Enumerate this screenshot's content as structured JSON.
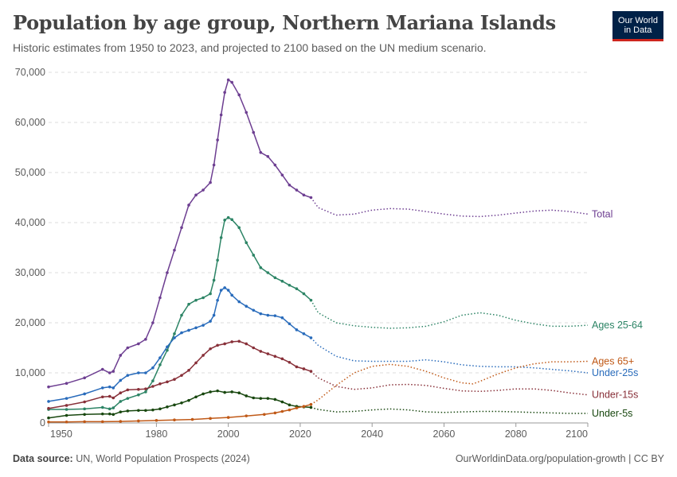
{
  "header": {
    "title": "Population by age group, Northern Mariana Islands",
    "subtitle": "Historic estimates from 1950 to 2023, and projected to 2100 based on the UN medium scenario.",
    "logo_line1": "Our World",
    "logo_line2": "in Data"
  },
  "footer": {
    "source_label": "Data source:",
    "source_text": "UN, World Population Prospects (2024)",
    "url_text": "OurWorldinData.org/population-growth | CC BY"
  },
  "colors": {
    "Total": "#6d3e91",
    "Ages 25-64": "#2c8465",
    "Ages 65+": "#c05917",
    "Under-25s": "#286bbb",
    "Under-15s": "#883039",
    "Under-5s": "#18470f"
  },
  "chart_data": {
    "type": "line",
    "x_range": [
      1950,
      2100
    ],
    "y_range": [
      0,
      70000
    ],
    "x_ticks": [
      "1950",
      "1980",
      "2000",
      "2020",
      "2040",
      "2060",
      "2080",
      "2100"
    ],
    "y_ticks": [
      "0",
      "10,000",
      "20,000",
      "30,000",
      "40,000",
      "50,000",
      "60,000",
      "70,000"
    ],
    "y_tick_values": [
      0,
      10000,
      20000,
      30000,
      40000,
      50000,
      60000,
      70000
    ],
    "x_tick_values": [
      1950,
      1980,
      2000,
      2020,
      2040,
      2060,
      2080,
      2100
    ],
    "gridlines": true,
    "historic_end_year": 2023,
    "legend": "inline labels at right end of lines",
    "series": [
      {
        "name": "Total",
        "points": [
          [
            1950,
            7200
          ],
          [
            1955,
            7900
          ],
          [
            1960,
            9000
          ],
          [
            1965,
            10700
          ],
          [
            1967,
            10000
          ],
          [
            1968,
            10300
          ],
          [
            1970,
            13500
          ],
          [
            1972,
            15000
          ],
          [
            1975,
            15800
          ],
          [
            1977,
            16700
          ],
          [
            1979,
            20000
          ],
          [
            1981,
            25000
          ],
          [
            1983,
            30000
          ],
          [
            1985,
            34500
          ],
          [
            1987,
            39000
          ],
          [
            1989,
            43500
          ],
          [
            1991,
            45500
          ],
          [
            1993,
            46500
          ],
          [
            1995,
            48000
          ],
          [
            1996,
            51500
          ],
          [
            1997,
            56500
          ],
          [
            1998,
            61500
          ],
          [
            1999,
            66000
          ],
          [
            2000,
            68500
          ],
          [
            2001,
            68000
          ],
          [
            2003,
            65500
          ],
          [
            2005,
            62000
          ],
          [
            2007,
            58000
          ],
          [
            2009,
            54000
          ],
          [
            2011,
            53200
          ],
          [
            2013,
            51500
          ],
          [
            2015,
            49500
          ],
          [
            2017,
            47500
          ],
          [
            2019,
            46500
          ],
          [
            2021,
            45500
          ],
          [
            2023,
            45000
          ],
          [
            2025,
            43000
          ],
          [
            2030,
            41500
          ],
          [
            2035,
            41700
          ],
          [
            2040,
            42500
          ],
          [
            2045,
            42800
          ],
          [
            2050,
            42700
          ],
          [
            2055,
            42200
          ],
          [
            2060,
            41700
          ],
          [
            2065,
            41300
          ],
          [
            2070,
            41200
          ],
          [
            2075,
            41500
          ],
          [
            2080,
            41900
          ],
          [
            2085,
            42300
          ],
          [
            2090,
            42500
          ],
          [
            2095,
            42200
          ],
          [
            2100,
            41700
          ]
        ]
      },
      {
        "name": "Ages 25-64",
        "points": [
          [
            1950,
            2700
          ],
          [
            1955,
            2700
          ],
          [
            1960,
            2800
          ],
          [
            1965,
            3100
          ],
          [
            1967,
            2800
          ],
          [
            1968,
            3000
          ],
          [
            1970,
            4300
          ],
          [
            1972,
            4900
          ],
          [
            1975,
            5600
          ],
          [
            1977,
            6200
          ],
          [
            1979,
            8400
          ],
          [
            1981,
            11600
          ],
          [
            1983,
            14500
          ],
          [
            1985,
            17800
          ],
          [
            1987,
            21500
          ],
          [
            1989,
            23700
          ],
          [
            1991,
            24500
          ],
          [
            1993,
            25000
          ],
          [
            1995,
            25800
          ],
          [
            1996,
            28500
          ],
          [
            1997,
            32500
          ],
          [
            1998,
            37000
          ],
          [
            1999,
            40500
          ],
          [
            2000,
            41000
          ],
          [
            2001,
            40600
          ],
          [
            2003,
            39000
          ],
          [
            2005,
            36000
          ],
          [
            2007,
            33500
          ],
          [
            2009,
            31000
          ],
          [
            2011,
            30000
          ],
          [
            2013,
            29000
          ],
          [
            2015,
            28300
          ],
          [
            2017,
            27500
          ],
          [
            2019,
            26800
          ],
          [
            2021,
            25800
          ],
          [
            2023,
            24500
          ],
          [
            2025,
            22000
          ],
          [
            2030,
            20000
          ],
          [
            2035,
            19400
          ],
          [
            2040,
            19100
          ],
          [
            2045,
            18900
          ],
          [
            2050,
            19000
          ],
          [
            2055,
            19300
          ],
          [
            2060,
            20200
          ],
          [
            2065,
            21500
          ],
          [
            2070,
            22000
          ],
          [
            2075,
            21500
          ],
          [
            2080,
            20500
          ],
          [
            2085,
            19800
          ],
          [
            2090,
            19300
          ],
          [
            2095,
            19300
          ],
          [
            2100,
            19500
          ]
        ]
      },
      {
        "name": "Under-25s",
        "points": [
          [
            1950,
            4300
          ],
          [
            1955,
            4900
          ],
          [
            1960,
            5800
          ],
          [
            1965,
            7000
          ],
          [
            1967,
            7200
          ],
          [
            1968,
            7000
          ],
          [
            1970,
            8500
          ],
          [
            1972,
            9500
          ],
          [
            1975,
            10000
          ],
          [
            1977,
            10000
          ],
          [
            1979,
            11000
          ],
          [
            1981,
            13000
          ],
          [
            1983,
            15200
          ],
          [
            1985,
            17000
          ],
          [
            1987,
            18000
          ],
          [
            1989,
            18500
          ],
          [
            1991,
            19000
          ],
          [
            1993,
            19500
          ],
          [
            1995,
            20300
          ],
          [
            1996,
            21500
          ],
          [
            1997,
            24500
          ],
          [
            1998,
            26500
          ],
          [
            1999,
            27000
          ],
          [
            2000,
            26500
          ],
          [
            2001,
            25500
          ],
          [
            2003,
            24200
          ],
          [
            2005,
            23300
          ],
          [
            2007,
            22500
          ],
          [
            2009,
            21800
          ],
          [
            2011,
            21500
          ],
          [
            2013,
            21400
          ],
          [
            2015,
            21000
          ],
          [
            2017,
            19800
          ],
          [
            2019,
            18600
          ],
          [
            2021,
            17800
          ],
          [
            2023,
            17000
          ],
          [
            2025,
            15500
          ],
          [
            2030,
            13300
          ],
          [
            2035,
            12400
          ],
          [
            2040,
            12300
          ],
          [
            2045,
            12300
          ],
          [
            2050,
            12300
          ],
          [
            2055,
            12600
          ],
          [
            2060,
            12200
          ],
          [
            2065,
            11600
          ],
          [
            2070,
            11300
          ],
          [
            2075,
            11200
          ],
          [
            2080,
            11200
          ],
          [
            2085,
            11000
          ],
          [
            2090,
            10700
          ],
          [
            2095,
            10400
          ],
          [
            2100,
            10000
          ]
        ]
      },
      {
        "name": "Under-15s",
        "points": [
          [
            1950,
            2900
          ],
          [
            1955,
            3500
          ],
          [
            1960,
            4200
          ],
          [
            1965,
            5200
          ],
          [
            1967,
            5300
          ],
          [
            1968,
            5000
          ],
          [
            1970,
            6000
          ],
          [
            1972,
            6600
          ],
          [
            1975,
            6700
          ],
          [
            1977,
            6800
          ],
          [
            1979,
            7300
          ],
          [
            1981,
            7800
          ],
          [
            1983,
            8200
          ],
          [
            1985,
            8700
          ],
          [
            1987,
            9500
          ],
          [
            1989,
            10500
          ],
          [
            1991,
            12000
          ],
          [
            1993,
            13500
          ],
          [
            1995,
            14800
          ],
          [
            1997,
            15500
          ],
          [
            1999,
            15800
          ],
          [
            2001,
            16200
          ],
          [
            2003,
            16300
          ],
          [
            2005,
            15800
          ],
          [
            2007,
            15000
          ],
          [
            2009,
            14300
          ],
          [
            2011,
            13800
          ],
          [
            2013,
            13300
          ],
          [
            2015,
            12800
          ],
          [
            2017,
            12100
          ],
          [
            2019,
            11200
          ],
          [
            2021,
            10800
          ],
          [
            2023,
            10300
          ],
          [
            2025,
            9000
          ],
          [
            2030,
            7300
          ],
          [
            2035,
            6700
          ],
          [
            2040,
            7000
          ],
          [
            2045,
            7600
          ],
          [
            2050,
            7700
          ],
          [
            2055,
            7500
          ],
          [
            2060,
            6900
          ],
          [
            2065,
            6400
          ],
          [
            2070,
            6300
          ],
          [
            2075,
            6500
          ],
          [
            2080,
            6800
          ],
          [
            2085,
            6800
          ],
          [
            2090,
            6500
          ],
          [
            2095,
            6000
          ],
          [
            2100,
            5600
          ]
        ]
      },
      {
        "name": "Under-5s",
        "points": [
          [
            1950,
            1000
          ],
          [
            1955,
            1500
          ],
          [
            1960,
            1700
          ],
          [
            1965,
            1800
          ],
          [
            1967,
            1800
          ],
          [
            1968,
            1700
          ],
          [
            1970,
            2200
          ],
          [
            1972,
            2400
          ],
          [
            1975,
            2500
          ],
          [
            1977,
            2500
          ],
          [
            1979,
            2600
          ],
          [
            1981,
            2800
          ],
          [
            1983,
            3200
          ],
          [
            1985,
            3600
          ],
          [
            1987,
            4000
          ],
          [
            1989,
            4500
          ],
          [
            1991,
            5200
          ],
          [
            1993,
            5800
          ],
          [
            1995,
            6200
          ],
          [
            1997,
            6400
          ],
          [
            1999,
            6100
          ],
          [
            2001,
            6200
          ],
          [
            2003,
            6000
          ],
          [
            2005,
            5400
          ],
          [
            2007,
            5000
          ],
          [
            2009,
            4900
          ],
          [
            2011,
            4900
          ],
          [
            2013,
            4700
          ],
          [
            2015,
            4200
          ],
          [
            2017,
            3600
          ],
          [
            2019,
            3300
          ],
          [
            2021,
            3200
          ],
          [
            2023,
            3100
          ],
          [
            2025,
            2700
          ],
          [
            2030,
            2200
          ],
          [
            2035,
            2300
          ],
          [
            2040,
            2600
          ],
          [
            2045,
            2800
          ],
          [
            2050,
            2600
          ],
          [
            2055,
            2200
          ],
          [
            2060,
            2100
          ],
          [
            2065,
            2200
          ],
          [
            2070,
            2300
          ],
          [
            2075,
            2300
          ],
          [
            2080,
            2200
          ],
          [
            2085,
            2100
          ],
          [
            2090,
            2000
          ],
          [
            2095,
            1900
          ],
          [
            2100,
            1900
          ]
        ]
      },
      {
        "name": "Ages 65+",
        "points": [
          [
            1950,
            200
          ],
          [
            1955,
            200
          ],
          [
            1960,
            250
          ],
          [
            1965,
            250
          ],
          [
            1970,
            300
          ],
          [
            1975,
            400
          ],
          [
            1980,
            500
          ],
          [
            1985,
            600
          ],
          [
            1990,
            700
          ],
          [
            1995,
            900
          ],
          [
            2000,
            1100
          ],
          [
            2005,
            1400
          ],
          [
            2010,
            1700
          ],
          [
            2013,
            2000
          ],
          [
            2015,
            2300
          ],
          [
            2017,
            2600
          ],
          [
            2019,
            3000
          ],
          [
            2021,
            3300
          ],
          [
            2023,
            3700
          ],
          [
            2025,
            4600
          ],
          [
            2030,
            7500
          ],
          [
            2035,
            10000
          ],
          [
            2040,
            11300
          ],
          [
            2045,
            11700
          ],
          [
            2050,
            11300
          ],
          [
            2055,
            10300
          ],
          [
            2060,
            9000
          ],
          [
            2065,
            8000
          ],
          [
            2068,
            7800
          ],
          [
            2070,
            8300
          ],
          [
            2075,
            9800
          ],
          [
            2080,
            11000
          ],
          [
            2085,
            11800
          ],
          [
            2090,
            12200
          ],
          [
            2095,
            12200
          ],
          [
            2100,
            12300
          ]
        ]
      }
    ]
  }
}
